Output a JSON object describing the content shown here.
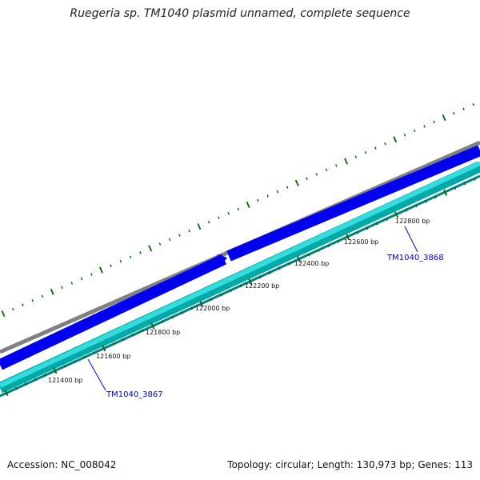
{
  "title": "Ruegeria sp. TM1040 plasmid unnamed, complete sequence",
  "footer": {
    "accession": "Accession: NC_008042",
    "summary": "Topology: circular; Length: 130,973 bp; Genes: 113"
  },
  "colors": {
    "backbone": "#808080",
    "forward_gene": "#0000ee",
    "reverse_gene_outer": "#00a8a8",
    "reverse_gene_inner": "#33dddd",
    "tick": "#006400",
    "gene_label": "#0000cc"
  },
  "scale_labels": [
    {
      "text": "121400 bp"
    },
    {
      "text": "121600 bp"
    },
    {
      "text": "121800 bp"
    },
    {
      "text": "122000 bp"
    },
    {
      "text": "122200 bp"
    },
    {
      "text": "122400 bp"
    },
    {
      "text": "122600 bp"
    },
    {
      "text": "122800 bp"
    }
  ],
  "genes": [
    {
      "name": "TM1040_3867",
      "strand": "reverse"
    },
    {
      "name": "TM1040_3868",
      "strand": "forward"
    }
  ]
}
